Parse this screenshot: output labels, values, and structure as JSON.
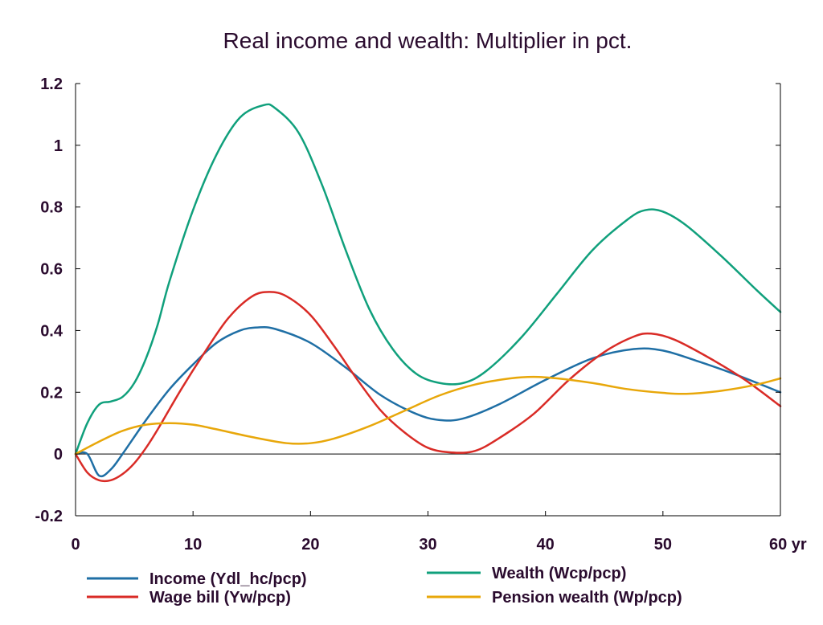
{
  "chart_data": {
    "type": "line",
    "title": "Real income and wealth: Multiplier in pct.",
    "xlabel": "",
    "ylabel": "",
    "xlim": [
      0,
      60
    ],
    "ylim": [
      -0.2,
      1.2
    ],
    "x_ticks": [
      {
        "value": 0,
        "label": "0"
      },
      {
        "value": 10,
        "label": "10"
      },
      {
        "value": 20,
        "label": "20"
      },
      {
        "value": 30,
        "label": "30"
      },
      {
        "value": 40,
        "label": "40"
      },
      {
        "value": 50,
        "label": "50"
      },
      {
        "value": 60,
        "label": "60 yr"
      }
    ],
    "y_ticks": [
      {
        "value": -0.2,
        "label": "-0.2"
      },
      {
        "value": 0,
        "label": "0"
      },
      {
        "value": 0.2,
        "label": "0.2"
      },
      {
        "value": 0.4,
        "label": "0.4"
      },
      {
        "value": 0.6,
        "label": "0.6"
      },
      {
        "value": 0.8,
        "label": "0.8"
      },
      {
        "value": 1.0,
        "label": "1"
      },
      {
        "value": 1.2,
        "label": "1.2"
      }
    ],
    "grid": false,
    "zero_line": true,
    "legend_position": "bottom",
    "series": [
      {
        "name": "Income (Ydl_hc/pcp)",
        "color": "#1f6fa5",
        "points": [
          [
            0,
            0
          ],
          [
            1,
            0
          ],
          [
            2,
            -0.07
          ],
          [
            3,
            -0.05
          ],
          [
            4,
            0
          ],
          [
            6,
            0.11
          ],
          [
            8,
            0.21
          ],
          [
            10,
            0.29
          ],
          [
            12,
            0.36
          ],
          [
            14,
            0.4
          ],
          [
            15.5,
            0.41
          ],
          [
            17,
            0.405
          ],
          [
            20,
            0.36
          ],
          [
            23,
            0.28
          ],
          [
            26,
            0.19
          ],
          [
            29,
            0.13
          ],
          [
            31,
            0.11
          ],
          [
            33,
            0.115
          ],
          [
            36,
            0.16
          ],
          [
            40,
            0.24
          ],
          [
            44,
            0.31
          ],
          [
            47.5,
            0.34
          ],
          [
            50,
            0.335
          ],
          [
            53,
            0.3
          ],
          [
            56,
            0.26
          ],
          [
            60,
            0.2
          ]
        ]
      },
      {
        "name": "Wealth (Wcp/pcp)",
        "color": "#10a07c",
        "points": [
          [
            0,
            0
          ],
          [
            1,
            0.1
          ],
          [
            2,
            0.16
          ],
          [
            3,
            0.17
          ],
          [
            4,
            0.185
          ],
          [
            5,
            0.23
          ],
          [
            6,
            0.31
          ],
          [
            7,
            0.42
          ],
          [
            8,
            0.56
          ],
          [
            10,
            0.79
          ],
          [
            12,
            0.97
          ],
          [
            14,
            1.09
          ],
          [
            16,
            1.13
          ],
          [
            17,
            1.12
          ],
          [
            19,
            1.04
          ],
          [
            21,
            0.87
          ],
          [
            23,
            0.66
          ],
          [
            25,
            0.47
          ],
          [
            27,
            0.34
          ],
          [
            29,
            0.26
          ],
          [
            31,
            0.23
          ],
          [
            33,
            0.23
          ],
          [
            35,
            0.27
          ],
          [
            38,
            0.38
          ],
          [
            41,
            0.52
          ],
          [
            44,
            0.66
          ],
          [
            47,
            0.76
          ],
          [
            48.5,
            0.79
          ],
          [
            50,
            0.785
          ],
          [
            52,
            0.74
          ],
          [
            55,
            0.64
          ],
          [
            58,
            0.53
          ],
          [
            60,
            0.46
          ]
        ]
      },
      {
        "name": "Wage bill (Yw/pcp)",
        "color": "#d92b26",
        "points": [
          [
            0,
            0
          ],
          [
            1,
            -0.06
          ],
          [
            2,
            -0.085
          ],
          [
            3,
            -0.085
          ],
          [
            4,
            -0.065
          ],
          [
            5,
            -0.03
          ],
          [
            6,
            0.02
          ],
          [
            7,
            0.08
          ],
          [
            9,
            0.21
          ],
          [
            11,
            0.33
          ],
          [
            13,
            0.44
          ],
          [
            15,
            0.51
          ],
          [
            16.5,
            0.525
          ],
          [
            18,
            0.51
          ],
          [
            20,
            0.45
          ],
          [
            22,
            0.35
          ],
          [
            24,
            0.24
          ],
          [
            26,
            0.14
          ],
          [
            28,
            0.07
          ],
          [
            30,
            0.02
          ],
          [
            32,
            0.005
          ],
          [
            34,
            0.01
          ],
          [
            36,
            0.05
          ],
          [
            39,
            0.13
          ],
          [
            42,
            0.24
          ],
          [
            45,
            0.33
          ],
          [
            47.5,
            0.38
          ],
          [
            49,
            0.39
          ],
          [
            51,
            0.37
          ],
          [
            54,
            0.31
          ],
          [
            57,
            0.24
          ],
          [
            60,
            0.155
          ]
        ]
      },
      {
        "name": "Pension wealth (Wp/pcp)",
        "color": "#e8a70a",
        "points": [
          [
            0,
            0
          ],
          [
            2,
            0.04
          ],
          [
            4,
            0.075
          ],
          [
            6,
            0.095
          ],
          [
            8,
            0.1
          ],
          [
            10,
            0.095
          ],
          [
            12,
            0.08
          ],
          [
            15,
            0.055
          ],
          [
            18,
            0.035
          ],
          [
            20,
            0.035
          ],
          [
            22,
            0.05
          ],
          [
            25,
            0.09
          ],
          [
            28,
            0.14
          ],
          [
            31,
            0.19
          ],
          [
            34,
            0.225
          ],
          [
            37,
            0.245
          ],
          [
            39,
            0.25
          ],
          [
            41,
            0.245
          ],
          [
            44,
            0.23
          ],
          [
            47,
            0.21
          ],
          [
            50,
            0.198
          ],
          [
            52,
            0.195
          ],
          [
            55,
            0.205
          ],
          [
            58,
            0.225
          ],
          [
            60,
            0.245
          ]
        ]
      }
    ]
  }
}
